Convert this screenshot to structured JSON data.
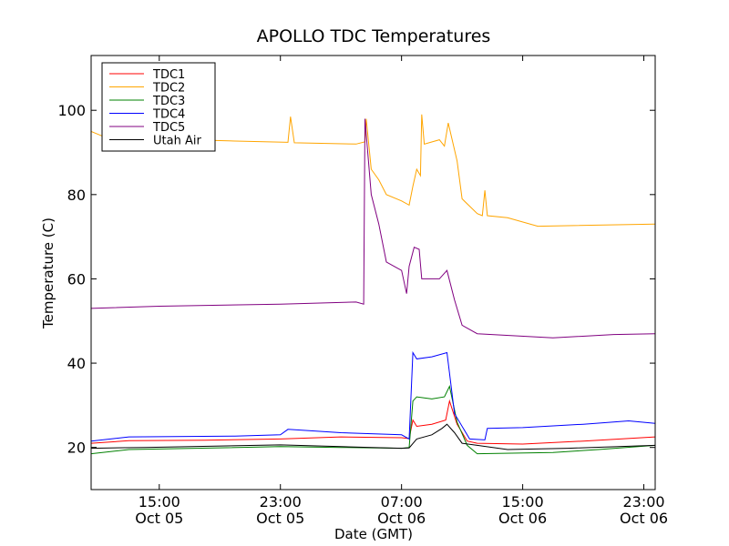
{
  "chart_data": {
    "type": "line",
    "title": "APOLLO TDC Temperatures",
    "xlabel": "Date (GMT)",
    "ylabel": "Temperature (C)",
    "x_unit": "GMT",
    "xlim": [
      "2014-10-05 10:30",
      "2014-10-06 23:45"
    ],
    "ylim": [
      10,
      113
    ],
    "x_ticks": [
      {
        "x": "2014-10-05 15:00",
        "label_time": "15:00",
        "label_date": "Oct 05"
      },
      {
        "x": "2014-10-05 23:00",
        "label_time": "23:00",
        "label_date": "Oct 05"
      },
      {
        "x": "2014-10-06 07:00",
        "label_time": "07:00",
        "label_date": "Oct 06"
      },
      {
        "x": "2014-10-06 15:00",
        "label_time": "15:00",
        "label_date": "Oct 06"
      },
      {
        "x": "2014-10-06 23:00",
        "label_time": "23:00",
        "label_date": "Oct 06"
      }
    ],
    "y_ticks": [
      20,
      40,
      60,
      80,
      100
    ],
    "grid": false,
    "legend_position": "top-left",
    "series": [
      {
        "name": "TDC1",
        "color": "#ff0000",
        "points": [
          [
            "2014-10-05 10:30",
            21.0
          ],
          [
            "2014-10-05 13:00",
            21.6
          ],
          [
            "2014-10-05 18:00",
            21.7
          ],
          [
            "2014-10-05 23:00",
            22.0
          ],
          [
            "2014-10-06 03:00",
            22.5
          ],
          [
            "2014-10-06 07:00",
            22.3
          ],
          [
            "2014-10-06 07:30",
            22.1
          ],
          [
            "2014-10-06 07:45",
            26.5
          ],
          [
            "2014-10-06 08:00",
            25.0
          ],
          [
            "2014-10-06 09:00",
            25.5
          ],
          [
            "2014-10-06 09:55",
            26.5
          ],
          [
            "2014-10-06 10:10",
            31.0
          ],
          [
            "2014-10-06 10:40",
            25.5
          ],
          [
            "2014-10-06 11:20",
            21.5
          ],
          [
            "2014-10-06 12:00",
            21.0
          ],
          [
            "2014-10-06 15:00",
            20.8
          ],
          [
            "2014-10-06 19:00",
            21.5
          ],
          [
            "2014-10-06 23:45",
            22.5
          ]
        ]
      },
      {
        "name": "TDC2",
        "color": "#ffa500",
        "points": [
          [
            "2014-10-05 10:30",
            95.0
          ],
          [
            "2014-10-05 11:30",
            93.5
          ],
          [
            "2014-10-05 14:00",
            93.3
          ],
          [
            "2014-10-05 20:00",
            92.7
          ],
          [
            "2014-10-05 23:30",
            92.4
          ],
          [
            "2014-10-05 23:40",
            98.5
          ],
          [
            "2014-10-05 23:55",
            92.3
          ],
          [
            "2014-10-06 04:00",
            92.0
          ],
          [
            "2014-10-06 04:35",
            92.5
          ],
          [
            "2014-10-06 04:40",
            98.0
          ],
          [
            "2014-10-06 05:00",
            86.0
          ],
          [
            "2014-10-06 05:30",
            83.5
          ],
          [
            "2014-10-06 06:00",
            80.0
          ],
          [
            "2014-10-06 07:00",
            78.5
          ],
          [
            "2014-10-06 07:30",
            77.5
          ],
          [
            "2014-10-06 07:45",
            82.0
          ],
          [
            "2014-10-06 08:00",
            86.0
          ],
          [
            "2014-10-06 08:15",
            84.5
          ],
          [
            "2014-10-06 08:20",
            99.0
          ],
          [
            "2014-10-06 08:30",
            92.0
          ],
          [
            "2014-10-06 09:30",
            93.0
          ],
          [
            "2014-10-06 09:50",
            91.5
          ],
          [
            "2014-10-06 10:05",
            97.0
          ],
          [
            "2014-10-06 10:40",
            88.0
          ],
          [
            "2014-10-06 11:00",
            79.0
          ],
          [
            "2014-10-06 12:00",
            75.5
          ],
          [
            "2014-10-06 12:20",
            75.0
          ],
          [
            "2014-10-06 12:30",
            81.0
          ],
          [
            "2014-10-06 12:40",
            75.0
          ],
          [
            "2014-10-06 14:00",
            74.5
          ],
          [
            "2014-10-06 16:00",
            72.5
          ],
          [
            "2014-10-06 23:45",
            73.0
          ]
        ]
      },
      {
        "name": "TDC3",
        "color": "#008000",
        "points": [
          [
            "2014-10-05 10:30",
            18.5
          ],
          [
            "2014-10-05 13:00",
            19.5
          ],
          [
            "2014-10-05 23:00",
            20.2
          ],
          [
            "2014-10-06 03:00",
            20.0
          ],
          [
            "2014-10-06 07:00",
            19.8
          ],
          [
            "2014-10-06 07:30",
            20.0
          ],
          [
            "2014-10-06 07:45",
            31.0
          ],
          [
            "2014-10-06 08:00",
            32.0
          ],
          [
            "2014-10-06 09:00",
            31.5
          ],
          [
            "2014-10-06 09:50",
            32.0
          ],
          [
            "2014-10-06 10:10",
            34.5
          ],
          [
            "2014-10-06 10:40",
            26.0
          ],
          [
            "2014-10-06 11:20",
            20.5
          ],
          [
            "2014-10-06 12:00",
            18.5
          ],
          [
            "2014-10-06 17:00",
            18.8
          ],
          [
            "2014-10-06 20:00",
            19.5
          ],
          [
            "2014-10-06 23:45",
            20.5
          ]
        ]
      },
      {
        "name": "TDC4",
        "color": "#0000ff",
        "points": [
          [
            "2014-10-05 10:30",
            21.5
          ],
          [
            "2014-10-05 13:00",
            22.5
          ],
          [
            "2014-10-05 20:00",
            22.7
          ],
          [
            "2014-10-05 23:00",
            23.0
          ],
          [
            "2014-10-05 23:30",
            24.3
          ],
          [
            "2014-10-06 03:00",
            23.5
          ],
          [
            "2014-10-06 07:00",
            23.0
          ],
          [
            "2014-10-06 07:30",
            22.0
          ],
          [
            "2014-10-06 07:45",
            42.5
          ],
          [
            "2014-10-06 08:00",
            41.0
          ],
          [
            "2014-10-06 09:00",
            41.5
          ],
          [
            "2014-10-06 10:00",
            42.5
          ],
          [
            "2014-10-06 10:30",
            28.0
          ],
          [
            "2014-10-06 11:30",
            22.0
          ],
          [
            "2014-10-06 12:30",
            21.8
          ],
          [
            "2014-10-06 12:40",
            24.5
          ],
          [
            "2014-10-06 15:00",
            24.7
          ],
          [
            "2014-10-06 19:00",
            25.5
          ],
          [
            "2014-10-06 22:00",
            26.3
          ],
          [
            "2014-10-06 23:45",
            25.7
          ]
        ]
      },
      {
        "name": "TDC5",
        "color": "#800080",
        "points": [
          [
            "2014-10-05 10:30",
            53.0
          ],
          [
            "2014-10-05 15:00",
            53.5
          ],
          [
            "2014-10-05 23:00",
            54.0
          ],
          [
            "2014-10-06 04:00",
            54.5
          ],
          [
            "2014-10-06 04:30",
            54.0
          ],
          [
            "2014-10-06 04:35",
            98.0
          ],
          [
            "2014-10-06 05:00",
            80.0
          ],
          [
            "2014-10-06 05:30",
            73.0
          ],
          [
            "2014-10-06 06:00",
            64.0
          ],
          [
            "2014-10-06 06:30",
            63.0
          ],
          [
            "2014-10-06 07:00",
            62.0
          ],
          [
            "2014-10-06 07:20",
            56.5
          ],
          [
            "2014-10-06 07:30",
            63.0
          ],
          [
            "2014-10-06 07:50",
            67.5
          ],
          [
            "2014-10-06 08:10",
            67.0
          ],
          [
            "2014-10-06 08:20",
            60.0
          ],
          [
            "2014-10-06 09:30",
            60.0
          ],
          [
            "2014-10-06 10:00",
            62.0
          ],
          [
            "2014-10-06 10:30",
            55.0
          ],
          [
            "2014-10-06 11:00",
            49.0
          ],
          [
            "2014-10-06 12:00",
            47.0
          ],
          [
            "2014-10-06 17:00",
            46.0
          ],
          [
            "2014-10-06 21:00",
            46.8
          ],
          [
            "2014-10-06 23:45",
            47.0
          ]
        ]
      },
      {
        "name": "Utah Air",
        "color": "#000000",
        "points": [
          [
            "2014-10-05 10:30",
            19.8
          ],
          [
            "2014-10-05 14:00",
            20.0
          ],
          [
            "2014-10-05 23:00",
            20.6
          ],
          [
            "2014-10-06 03:00",
            20.2
          ],
          [
            "2014-10-06 07:00",
            19.8
          ],
          [
            "2014-10-06 07:30",
            19.9
          ],
          [
            "2014-10-06 08:00",
            22.0
          ],
          [
            "2014-10-06 09:00",
            23.0
          ],
          [
            "2014-10-06 09:40",
            24.5
          ],
          [
            "2014-10-06 10:00",
            25.5
          ],
          [
            "2014-10-06 10:30",
            23.5
          ],
          [
            "2014-10-06 11:00",
            21.0
          ],
          [
            "2014-10-06 12:00",
            20.5
          ],
          [
            "2014-10-06 14:00",
            19.5
          ],
          [
            "2014-10-06 18:00",
            19.8
          ],
          [
            "2014-10-06 23:45",
            20.5
          ]
        ]
      }
    ]
  }
}
